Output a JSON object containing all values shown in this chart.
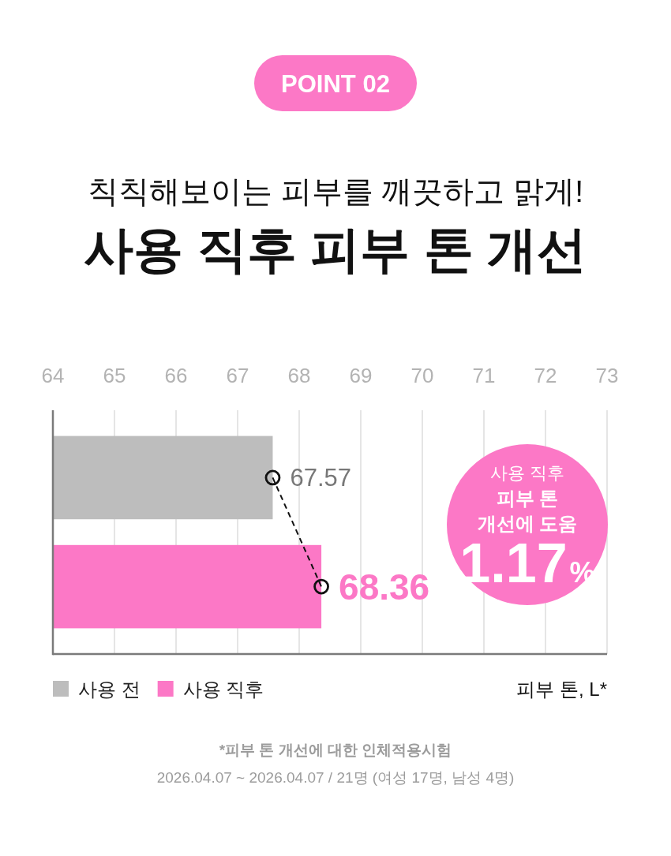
{
  "chart_data": {
    "type": "bar",
    "orientation": "horizontal",
    "title": "사용 직후 피부 톤 개선",
    "subtitle": "칙칙해보이는 피부를 깨끗하고 맑게!",
    "xlabel": "피부 톤, L*",
    "categories": [
      null,
      null
    ],
    "series": [
      {
        "name": "사용 전",
        "color": "#bdbdbd",
        "values": [
          67.57,
          null
        ],
        "value_labels": [
          "67.57",
          null
        ]
      },
      {
        "name": "사용 직후",
        "color": "#fc78c6",
        "values": [
          null,
          68.36
        ],
        "value_labels": [
          null,
          "68.36"
        ]
      },
      {
        "type": "line",
        "color": "#111111",
        "values": [
          67.57,
          68.36
        ],
        "marker": "circle",
        "line_style": "dashed"
      }
    ],
    "xlim": [
      64,
      73
    ],
    "xticks": [
      64,
      65,
      66,
      67,
      68,
      69,
      70,
      71,
      72,
      73
    ],
    "grid": "x",
    "legend": "bottom",
    "annotations": [
      "POINT 02",
      "사용 직후",
      "피부 톤",
      "개선에 도움",
      "1.17%",
      "*피부 톤 개선에 대한 인체적용시험",
      "2026.04.07 ~ 2026.04.07 / 21명 (여성 17명, 남성 4명)"
    ]
  }
}
